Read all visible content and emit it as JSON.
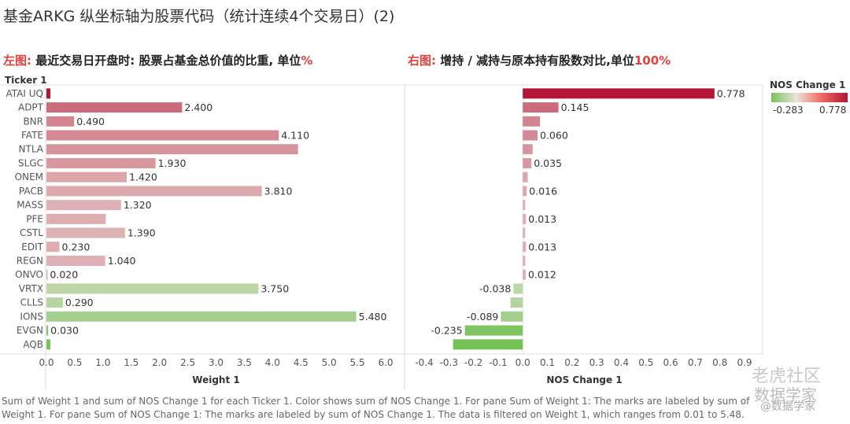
{
  "title": "基金ARKG 纵坐标轴为股票代码（统计连续4个交易日）(2)",
  "subtitle_left": {
    "prefix": "左图:",
    "text": "最近交易日开盘时: 股票占基金总价值的比重, 单位",
    "unit": "%"
  },
  "subtitle_right": {
    "prefix": "右图:",
    "text": "增持 / 减持与原本持有股数对比,单位",
    "unit": "100%"
  },
  "legend": {
    "title": "NOS Change 1",
    "min_label": "-0.283",
    "max_label": "0.778"
  },
  "footnote": "Sum of Weight 1 and sum of NOS Change 1 for each Ticker 1.  Color shows sum of NOS Change 1.  For pane Sum of Weight 1: The marks are labeled by sum of Weight 1.  For pane Sum of NOS Change 1: The marks are labeled by sum of NOS Change 1. The data is filtered on Weight 1, which ranges from 0.01 to 5.48.",
  "watermark": {
    "top": "老虎社区",
    "bottom": "数据学家",
    "handle": "@数据学家"
  },
  "colors": {
    "max": "#b41435",
    "mid": "#ebe3db",
    "min": "#76c259",
    "gridline": "#e6e6e6",
    "axis": "#dddddd"
  },
  "chart_data": {
    "type": "bar",
    "orientation": "horizontal",
    "row_header": "Ticker 1",
    "categories": [
      "ATAI UQ",
      "ADPT",
      "BNR",
      "FATE",
      "NTLA",
      "SLGC",
      "ONEM",
      "PACB",
      "MASS",
      "PFE",
      "CSTL",
      "EDIT",
      "REGN",
      "ONVO",
      "VRTX",
      "CLLS",
      "IONS",
      "EVGN",
      "AQB"
    ],
    "color_measure": [
      0.778,
      0.145,
      0.07,
      0.06,
      0.04,
      0.035,
      0.02,
      0.016,
      0.01,
      0.013,
      0.01,
      0.013,
      0.01,
      0.012,
      -0.038,
      -0.05,
      -0.089,
      -0.235,
      -0.283
    ],
    "panes": [
      {
        "name": "Weight 1",
        "xlabel": "Weight 1",
        "xlim": [
          0,
          6.0
        ],
        "ticks": [
          "0.0",
          "0.5",
          "1.0",
          "1.5",
          "2.0",
          "2.5",
          "3.0",
          "3.5",
          "4.0",
          "4.5",
          "5.0",
          "5.5",
          "6.0"
        ],
        "values": [
          0.07,
          2.4,
          0.49,
          4.11,
          4.45,
          1.93,
          1.42,
          3.81,
          1.32,
          1.05,
          1.39,
          0.23,
          1.04,
          0.02,
          3.75,
          0.29,
          5.48,
          0.03,
          0.07
        ],
        "labels": [
          "",
          "2.400",
          "0.490",
          "4.110",
          "",
          "1.930",
          "1.420",
          "3.810",
          "1.320",
          "",
          "1.390",
          "0.230",
          "1.040",
          "0.020",
          "3.750",
          "0.290",
          "5.480",
          "0.030",
          ""
        ]
      },
      {
        "name": "NOS Change 1",
        "xlabel": "NOS Change 1",
        "xlim": [
          -0.4,
          0.9
        ],
        "ticks": [
          "-0.4",
          "-0.3",
          "-0.2",
          "-0.1",
          "0.0",
          "0.1",
          "0.2",
          "0.3",
          "0.4",
          "0.5",
          "0.6",
          "0.7",
          "0.8",
          "0.9"
        ],
        "values": [
          0.778,
          0.145,
          0.07,
          0.06,
          0.04,
          0.035,
          0.02,
          0.016,
          0.01,
          0.013,
          0.01,
          0.013,
          0.01,
          0.012,
          -0.038,
          -0.05,
          -0.089,
          -0.235,
          -0.283
        ],
        "labels": [
          "0.778",
          "0.145",
          "",
          "0.060",
          "",
          "0.035",
          "",
          "0.016",
          "",
          "0.013",
          "",
          "0.013",
          "",
          "0.012",
          "-0.038",
          "",
          "-0.089",
          "-0.235",
          ""
        ]
      }
    ]
  }
}
